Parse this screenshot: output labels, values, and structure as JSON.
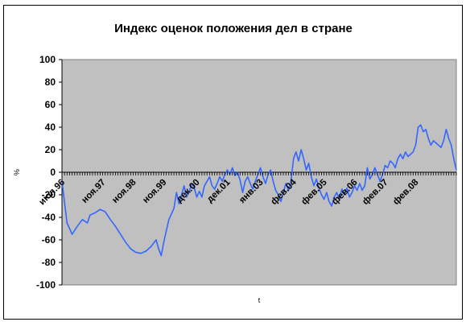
{
  "chart_data": {
    "type": "line",
    "title": "Индекс оценок положения дел в стране",
    "xlabel": "t",
    "ylabel": "%",
    "ylim": [
      -100,
      100
    ],
    "yticks": [
      100,
      80,
      60,
      40,
      20,
      0,
      -20,
      -40,
      -60,
      -80,
      -100
    ],
    "grid": false,
    "plot_background": "#c0c0c0",
    "line_color": "#3366ff",
    "x_tick_labels": [
      {
        "label": "июл.96",
        "month_index": 0
      },
      {
        "label": "ноя.97",
        "month_index": 16
      },
      {
        "label": "ноя.98",
        "month_index": 28
      },
      {
        "label": "ноя.99",
        "month_index": 40
      },
      {
        "label": "дек.00",
        "month_index": 53
      },
      {
        "label": "дек.01",
        "month_index": 65
      },
      {
        "label": "янв.03",
        "month_index": 78
      },
      {
        "label": "фев.04",
        "month_index": 91
      },
      {
        "label": "фев.05",
        "month_index": 103
      },
      {
        "label": "фев.06",
        "month_index": 115
      },
      {
        "label": "фев.07",
        "month_index": 127
      },
      {
        "label": "фев.08",
        "month_index": 139
      }
    ],
    "series": [
      {
        "points": [
          [
            0,
            -8
          ],
          [
            2,
            -45
          ],
          [
            4,
            -55
          ],
          [
            6,
            -48
          ],
          [
            8,
            -42
          ],
          [
            10,
            -45
          ],
          [
            11,
            -38
          ],
          [
            13,
            -36
          ],
          [
            15,
            -33
          ],
          [
            17,
            -35
          ],
          [
            19,
            -42
          ],
          [
            21,
            -48
          ],
          [
            23,
            -55
          ],
          [
            25,
            -62
          ],
          [
            27,
            -68
          ],
          [
            29,
            -71
          ],
          [
            31,
            -72
          ],
          [
            33,
            -70
          ],
          [
            35,
            -66
          ],
          [
            37,
            -60
          ],
          [
            38,
            -68
          ],
          [
            39,
            -74
          ],
          [
            40,
            -62
          ],
          [
            41,
            -52
          ],
          [
            42,
            -42
          ],
          [
            44,
            -32
          ],
          [
            45,
            -18
          ],
          [
            46,
            -28
          ],
          [
            47,
            -20
          ],
          [
            48,
            -12
          ],
          [
            49,
            -22
          ],
          [
            50,
            -17
          ],
          [
            51,
            -10
          ],
          [
            52,
            -14
          ],
          [
            53,
            -22
          ],
          [
            54,
            -17
          ],
          [
            55,
            -22
          ],
          [
            56,
            -12
          ],
          [
            57,
            -8
          ],
          [
            58,
            -4
          ],
          [
            59,
            -12
          ],
          [
            60,
            -15
          ],
          [
            61,
            -10
          ],
          [
            62,
            -4
          ],
          [
            63,
            -8
          ],
          [
            64,
            -2
          ],
          [
            65,
            2
          ],
          [
            66,
            -2
          ],
          [
            67,
            4
          ],
          [
            68,
            -3
          ],
          [
            69,
            0
          ],
          [
            70,
            -7
          ],
          [
            71,
            -18
          ],
          [
            72,
            -8
          ],
          [
            73,
            -4
          ],
          [
            74,
            -10
          ],
          [
            75,
            -15
          ],
          [
            76,
            -8
          ],
          [
            77,
            -2
          ],
          [
            78,
            4
          ],
          [
            79,
            -4
          ],
          [
            80,
            -10
          ],
          [
            81,
            -2
          ],
          [
            82,
            2
          ],
          [
            83,
            -8
          ],
          [
            84,
            -16
          ],
          [
            85,
            -20
          ],
          [
            86,
            -26
          ],
          [
            87,
            -18
          ],
          [
            88,
            -10
          ],
          [
            89,
            -16
          ],
          [
            90,
            -8
          ],
          [
            91,
            12
          ],
          [
            92,
            18
          ],
          [
            93,
            10
          ],
          [
            94,
            20
          ],
          [
            95,
            12
          ],
          [
            96,
            2
          ],
          [
            97,
            8
          ],
          [
            98,
            -4
          ],
          [
            99,
            -12
          ],
          [
            100,
            -6
          ],
          [
            101,
            -14
          ],
          [
            102,
            -20
          ],
          [
            103,
            -24
          ],
          [
            104,
            -18
          ],
          [
            105,
            -26
          ],
          [
            106,
            -30
          ],
          [
            107,
            -22
          ],
          [
            108,
            -18
          ],
          [
            109,
            -24
          ],
          [
            110,
            -15
          ],
          [
            111,
            -20
          ],
          [
            112,
            -14
          ],
          [
            113,
            -22
          ],
          [
            114,
            -18
          ],
          [
            115,
            -12
          ],
          [
            116,
            -16
          ],
          [
            117,
            -10
          ],
          [
            118,
            -16
          ],
          [
            119,
            -12
          ],
          [
            120,
            4
          ],
          [
            121,
            -6
          ],
          [
            122,
            -2
          ],
          [
            123,
            4
          ],
          [
            124,
            -2
          ],
          [
            125,
            -8
          ],
          [
            126,
            -2
          ],
          [
            127,
            6
          ],
          [
            128,
            4
          ],
          [
            129,
            10
          ],
          [
            130,
            8
          ],
          [
            131,
            4
          ],
          [
            132,
            12
          ],
          [
            133,
            16
          ],
          [
            134,
            12
          ],
          [
            135,
            18
          ],
          [
            136,
            14
          ],
          [
            137,
            16
          ],
          [
            138,
            18
          ],
          [
            139,
            24
          ],
          [
            140,
            40
          ],
          [
            141,
            42
          ],
          [
            142,
            36
          ],
          [
            143,
            38
          ],
          [
            144,
            30
          ],
          [
            145,
            24
          ],
          [
            146,
            28
          ],
          [
            147,
            26
          ],
          [
            148,
            24
          ],
          [
            149,
            22
          ],
          [
            150,
            28
          ],
          [
            151,
            38
          ],
          [
            152,
            30
          ],
          [
            153,
            24
          ],
          [
            154,
            12
          ],
          [
            155,
            2
          ]
        ]
      }
    ]
  }
}
